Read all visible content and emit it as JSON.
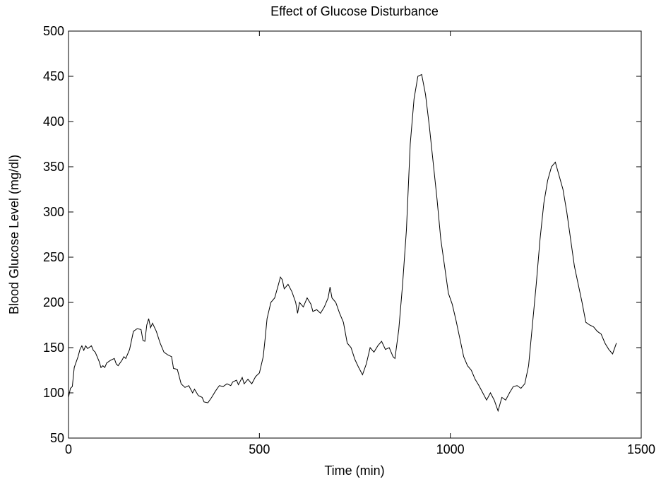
{
  "chart_data": {
    "type": "line",
    "title": "Effect of Glucose Disturbance",
    "x_label": "Time (min)",
    "y_label": "Blood Glucose Level (mg/dl)",
    "x": [
      0,
      5,
      10,
      15,
      25,
      30,
      35,
      40,
      45,
      50,
      60,
      65,
      70,
      80,
      85,
      90,
      95,
      100,
      110,
      120,
      125,
      130,
      140,
      145,
      150,
      160,
      170,
      180,
      190,
      195,
      200,
      205,
      210,
      215,
      220,
      230,
      240,
      250,
      260,
      270,
      275,
      285,
      290,
      295,
      305,
      315,
      325,
      330,
      340,
      350,
      355,
      365,
      375,
      385,
      395,
      405,
      415,
      425,
      430,
      440,
      445,
      455,
      460,
      470,
      480,
      490,
      500,
      510,
      515,
      520,
      530,
      540,
      550,
      555,
      560,
      565,
      575,
      585,
      595,
      600,
      605,
      615,
      625,
      635,
      640,
      650,
      660,
      670,
      680,
      685,
      690,
      700,
      710,
      720,
      730,
      740,
      750,
      760,
      770,
      780,
      790,
      800,
      810,
      820,
      830,
      840,
      850,
      855,
      865,
      875,
      885,
      895,
      905,
      915,
      925,
      935,
      945,
      955,
      965,
      975,
      985,
      995,
      1005,
      1015,
      1025,
      1035,
      1045,
      1055,
      1065,
      1075,
      1085,
      1095,
      1105,
      1115,
      1125,
      1135,
      1145,
      1155,
      1165,
      1175,
      1185,
      1195,
      1205,
      1215,
      1225,
      1235,
      1245,
      1255,
      1265,
      1275,
      1285,
      1295,
      1305,
      1315,
      1325,
      1335,
      1345,
      1355,
      1365,
      1375,
      1385,
      1395,
      1405,
      1415,
      1425,
      1435
    ],
    "series": [
      {
        "name": "Blood glucose",
        "color": "#000000",
        "values": [
          95,
          105,
          107,
          128,
          140,
          148,
          152,
          147,
          152,
          149,
          152,
          147,
          145,
          135,
          128,
          130,
          128,
          133,
          136,
          138,
          132,
          130,
          136,
          140,
          138,
          148,
          168,
          171,
          170,
          158,
          157,
          175,
          182,
          172,
          177,
          168,
          155,
          145,
          142,
          140,
          127,
          126,
          118,
          110,
          106,
          108,
          100,
          104,
          97,
          95,
          90,
          89,
          95,
          102,
          108,
          107,
          110,
          108,
          112,
          114,
          109,
          117,
          110,
          115,
          110,
          118,
          122,
          140,
          160,
          182,
          200,
          205,
          220,
          228,
          225,
          215,
          220,
          212,
          200,
          188,
          200,
          195,
          205,
          198,
          190,
          192,
          188,
          195,
          205,
          217,
          205,
          200,
          188,
          178,
          155,
          150,
          137,
          128,
          120,
          132,
          150,
          145,
          152,
          157,
          148,
          150,
          140,
          138,
          170,
          220,
          280,
          375,
          425,
          450,
          452,
          430,
          395,
          355,
          315,
          270,
          240,
          210,
          198,
          180,
          160,
          140,
          130,
          125,
          115,
          108,
          100,
          92,
          100,
          92,
          80,
          95,
          92,
          100,
          107,
          108,
          105,
          110,
          130,
          175,
          220,
          270,
          310,
          335,
          350,
          355,
          340,
          325,
          300,
          270,
          240,
          220,
          200,
          178,
          175,
          173,
          168,
          165,
          155,
          148,
          143,
          155
        ]
      }
    ],
    "xlim": [
      0,
      1500
    ],
    "xticks": [
      0,
      500,
      1000,
      1500
    ],
    "ylim": [
      50,
      500
    ],
    "yticks": [
      50,
      100,
      150,
      200,
      250,
      300,
      350,
      400,
      450,
      500
    ]
  }
}
